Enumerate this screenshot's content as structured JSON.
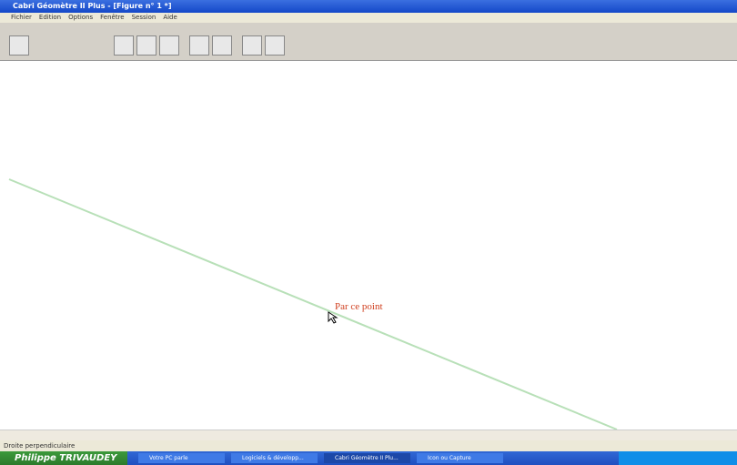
{
  "window": {
    "title": "Cabri Géomètre II Plus - [Figure n° 1 *]"
  },
  "menu": [
    "Fichier",
    "Edition",
    "Options",
    "Fenêtre",
    "Session",
    "Aide"
  ],
  "canvas": {
    "label": "Par ce point"
  },
  "status": "Droite perpendiculaire",
  "taskbar": {
    "start": "Philippe TRIVAUDEY",
    "items": [
      "Votre PC parle",
      "Logiciels & développ...",
      "Cabri Géomètre II Plu...",
      "Icon ou Capture"
    ]
  }
}
